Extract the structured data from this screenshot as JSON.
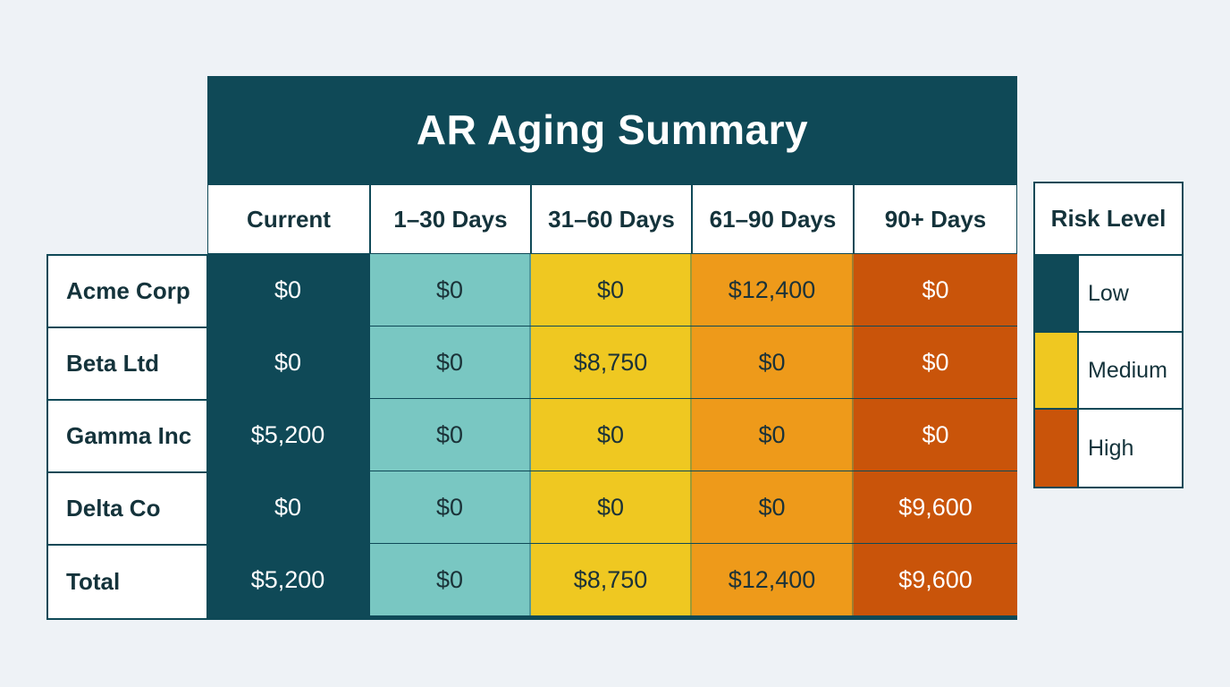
{
  "chart_data": {
    "type": "table",
    "title": "AR Aging Summary",
    "columns": [
      "Current",
      "1–30 Days",
      "31–60 Days",
      "61–90 Days",
      "90+ Days"
    ],
    "column_colors": [
      "#0f4957",
      "#79c7c2",
      "#efc821",
      "#ee9a1a",
      "#c9540a"
    ],
    "column_text_colors": [
      "#ffffff",
      "#1b3238",
      "#1b3238",
      "#1b3238",
      "#ffffff"
    ],
    "rows": [
      {
        "label": "Acme Corp",
        "values": [
          "$0",
          "$0",
          "$0",
          "$12,400",
          "$0"
        ]
      },
      {
        "label": "Beta Ltd",
        "values": [
          "$0",
          "$0",
          "$8,750",
          "$0",
          "$0"
        ]
      },
      {
        "label": "Gamma Inc",
        "values": [
          "$5,200",
          "$0",
          "$0",
          "$0",
          "$0"
        ]
      },
      {
        "label": "Delta Co",
        "values": [
          "$0",
          "$0",
          "$0",
          "$0",
          "$9,600"
        ]
      },
      {
        "label": "Total",
        "values": [
          "$5,200",
          "$0",
          "$8,750",
          "$12,400",
          "$9,600"
        ]
      }
    ],
    "legend": {
      "title": "Risk Level",
      "placement": "right",
      "items": [
        {
          "label": "Low",
          "color": "#0f4957"
        },
        {
          "label": "Medium",
          "color": "#efc821"
        },
        {
          "label": "High",
          "color": "#c9540a"
        }
      ]
    }
  }
}
